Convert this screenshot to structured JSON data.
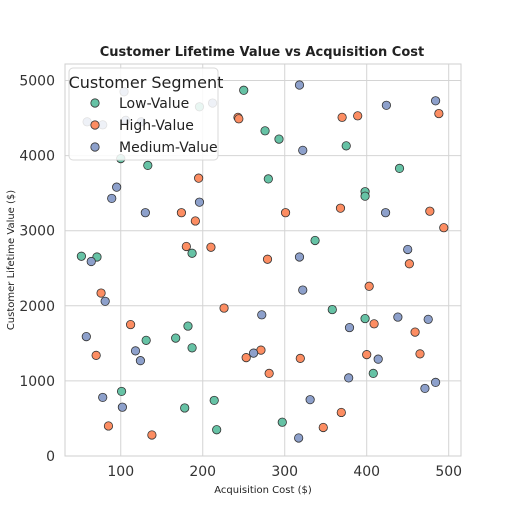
{
  "chart_data": {
    "type": "scatter",
    "title": "Customer Lifetime Value vs Acquisition Cost",
    "xlabel": "Acquisition Cost ($)",
    "ylabel": "Customer Lifetime Value ($)",
    "xlim": [
      32,
      515
    ],
    "ylim": [
      0,
      5220
    ],
    "xticks": [
      100,
      200,
      300,
      400,
      500
    ],
    "yticks": [
      0,
      1000,
      2000,
      3000,
      4000,
      5000
    ],
    "grid": true,
    "legend": {
      "title": "Customer Segment",
      "placement": "top-left"
    },
    "series": [
      {
        "name": "Low-Value",
        "color": "#66c2a5",
        "points": [
          [
            250,
            4870
          ],
          [
            276,
            4330
          ],
          [
            293,
            4220
          ],
          [
            375,
            4130
          ],
          [
            440,
            3830
          ],
          [
            133,
            3870
          ],
          [
            196,
            4650
          ],
          [
            100,
            3960
          ],
          [
            280,
            3690
          ],
          [
            398,
            3520
          ],
          [
            398,
            3460
          ],
          [
            52,
            2660
          ],
          [
            71,
            2650
          ],
          [
            337,
            2870
          ],
          [
            187,
            2700
          ],
          [
            358,
            1950
          ],
          [
            182,
            1730
          ],
          [
            398,
            1830
          ],
          [
            187,
            1440
          ],
          [
            167,
            1570
          ],
          [
            131,
            1540
          ],
          [
            408,
            1100
          ],
          [
            101,
            860
          ],
          [
            178,
            640
          ],
          [
            214,
            740
          ],
          [
            297,
            450
          ],
          [
            217,
            350
          ]
        ]
      },
      {
        "name": "High-Value",
        "color": "#fc8d62",
        "points": [
          [
            243,
            4510
          ],
          [
            244,
            4490
          ],
          [
            370,
            4510
          ],
          [
            389,
            4530
          ],
          [
            488,
            4560
          ],
          [
            195,
            3700
          ],
          [
            191,
            3130
          ],
          [
            174,
            3240
          ],
          [
            301,
            3240
          ],
          [
            368,
            3300
          ],
          [
            477,
            3260
          ],
          [
            494,
            3040
          ],
          [
            180,
            2790
          ],
          [
            210,
            2780
          ],
          [
            279,
            2620
          ],
          [
            403,
            2260
          ],
          [
            452,
            2560
          ],
          [
            76,
            2170
          ],
          [
            226,
            1970
          ],
          [
            409,
            1760
          ],
          [
            459,
            1650
          ],
          [
            112,
            1750
          ],
          [
            70,
            1340
          ],
          [
            271,
            1410
          ],
          [
            319,
            1300
          ],
          [
            253,
            1310
          ],
          [
            400,
            1350
          ],
          [
            465,
            1360
          ],
          [
            281,
            1100
          ],
          [
            369,
            580
          ],
          [
            85,
            400
          ],
          [
            138,
            280
          ],
          [
            347,
            380
          ]
        ]
      },
      {
        "name": "Medium-Value",
        "color": "#8da0cb",
        "points": [
          [
            318,
            4940
          ],
          [
            484,
            4730
          ],
          [
            212,
            4700
          ],
          [
            104,
            4850
          ],
          [
            424,
            4670
          ],
          [
            59,
            4450
          ],
          [
            78,
            4410
          ],
          [
            106,
            4470
          ],
          [
            125,
            4450
          ],
          [
            322,
            4070
          ],
          [
            95,
            3580
          ],
          [
            89,
            3430
          ],
          [
            196,
            3380
          ],
          [
            130,
            3240
          ],
          [
            423,
            3240
          ],
          [
            450,
            2750
          ],
          [
            64,
            2590
          ],
          [
            318,
            2650
          ],
          [
            322,
            2210
          ],
          [
            81,
            2060
          ],
          [
            272,
            1880
          ],
          [
            379,
            1710
          ],
          [
            438,
            1850
          ],
          [
            475,
            1820
          ],
          [
            58,
            1590
          ],
          [
            118,
            1400
          ],
          [
            124,
            1270
          ],
          [
            262,
            1370
          ],
          [
            414,
            1290
          ],
          [
            378,
            1040
          ],
          [
            471,
            900
          ],
          [
            484,
            980
          ],
          [
            78,
            780
          ],
          [
            102,
            650
          ],
          [
            331,
            750
          ],
          [
            317,
            240
          ]
        ]
      }
    ]
  }
}
